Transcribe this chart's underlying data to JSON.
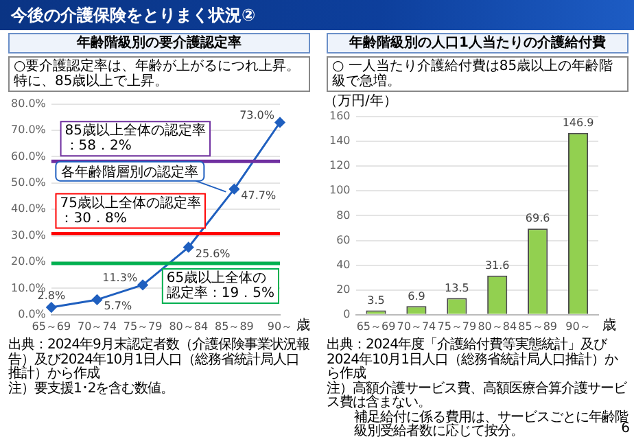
{
  "chart_data": [
    {
      "type": "line",
      "title": "年齢階級別の要介護認定率",
      "subtitle": "○要介護認定率は、年齢が上がるにつれ上昇。特に、85歳以上で上昇。",
      "xlabel": "歳",
      "categories": [
        "65～69",
        "70～74",
        "75～79",
        "80～84",
        "85～89",
        "90～"
      ],
      "series": [
        {
          "name": "各年齢階層別の認定率",
          "color": "#1f5fbf",
          "values": [
            2.8,
            5.7,
            11.3,
            25.6,
            47.7,
            73.0
          ],
          "value_labels": [
            "2.8%",
            "5.7%",
            "11.3%",
            "25.6%",
            "47.7%",
            "73.0%"
          ]
        }
      ],
      "ylim": [
        0,
        80
      ],
      "yticks": [
        {
          "value": 0,
          "label": "0.0%"
        },
        {
          "value": 10,
          "label": "10.0%"
        },
        {
          "value": 20,
          "label": "20.0%"
        },
        {
          "value": 30,
          "label": "30.0%"
        },
        {
          "value": 40,
          "label": "40.0%"
        },
        {
          "value": 50,
          "label": "50.0%"
        },
        {
          "value": 60,
          "label": "60.0%"
        },
        {
          "value": 70,
          "label": "70.0%"
        },
        {
          "value": 80,
          "label": "80.0%"
        }
      ],
      "grid": "y",
      "legend": false,
      "marker": "diamond",
      "ref_lines": [
        {
          "axis": "y",
          "value": 58.2,
          "label": "85歳以上全体の認定率：58．2%",
          "color": "#7030a0"
        },
        {
          "axis": "y",
          "value": 30.8,
          "label": "75歳以上全体の認定率：30．8%",
          "color": "#ff0000"
        },
        {
          "axis": "y",
          "value": 19.5,
          "label": "65歳以上全体の認定率：19．5%",
          "color": "#00b050"
        }
      ],
      "annotations": [
        "今後の介護保険をとりまく状況②",
        "出典：2024年9月末認定者数（介護保険事業状況報告）及び2024年10月1日人口（総務省統計局人口推計）から作成",
        "注）要支援1･2を含む数値。"
      ]
    },
    {
      "type": "bar",
      "title": "年齢階級別の人口1人当たりの介護給付費",
      "subtitle": "○ 一人当たり介護給付費は85歳以上の年齢階級で急増。",
      "xlabel": "歳",
      "ylabel": "（万円/年）",
      "categories": [
        "65～69",
        "70～74",
        "75～79",
        "80～84",
        "85～89",
        "90～"
      ],
      "values": [
        3.5,
        6.9,
        13.5,
        31.6,
        69.6,
        146.9
      ],
      "color": "#92d050",
      "data_labels": true,
      "ylim": [
        0,
        160
      ],
      "yticks": [
        0,
        20,
        40,
        60,
        80,
        100,
        120,
        140,
        160
      ],
      "grid": "y",
      "legend": false,
      "annotations": [
        "出典：2024年度「介護給付費等実態統計」及び2024年10月1日人口（総務省統計局人口推計）から作成",
        "注）高額介護サービス費、高額医療合算介護サービス費は含まない。",
        "補足給付に係る費用は、サービスごとに年齢階級別受給者数に応じて按分。",
        "6"
      ]
    }
  ]
}
